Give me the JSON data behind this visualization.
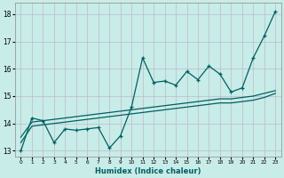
{
  "xlabel": "Humidex (Indice chaleur)",
  "background_color": "#c8ece8",
  "grid_color": "#c0b8cc",
  "line_color": "#006060",
  "x_values": [
    0,
    1,
    2,
    3,
    4,
    5,
    6,
    7,
    8,
    9,
    10,
    11,
    12,
    13,
    14,
    15,
    16,
    17,
    18,
    19,
    20,
    21,
    22,
    23
  ],
  "y_main": [
    13.0,
    14.2,
    14.1,
    13.3,
    13.8,
    13.75,
    13.8,
    13.85,
    13.1,
    13.55,
    14.6,
    16.4,
    15.5,
    15.55,
    15.4,
    15.9,
    15.6,
    16.1,
    15.8,
    15.15,
    15.3,
    16.4,
    17.2,
    18.1
  ],
  "y_smooth1": [
    13.5,
    14.05,
    14.1,
    14.15,
    14.2,
    14.25,
    14.3,
    14.35,
    14.4,
    14.45,
    14.5,
    14.55,
    14.6,
    14.65,
    14.7,
    14.75,
    14.8,
    14.85,
    14.9,
    14.9,
    14.95,
    15.0,
    15.1,
    15.2
  ],
  "y_smooth2": [
    13.3,
    13.9,
    13.95,
    14.0,
    14.05,
    14.1,
    14.15,
    14.2,
    14.25,
    14.3,
    14.35,
    14.4,
    14.45,
    14.5,
    14.55,
    14.6,
    14.65,
    14.7,
    14.75,
    14.75,
    14.8,
    14.85,
    14.95,
    15.1
  ],
  "ylim": [
    12.8,
    18.4
  ],
  "xlim": [
    -0.5,
    23.5
  ],
  "yticks": [
    13,
    14,
    15,
    16,
    17,
    18
  ],
  "xticks": [
    0,
    1,
    2,
    3,
    4,
    5,
    6,
    7,
    8,
    9,
    10,
    11,
    12,
    13,
    14,
    15,
    16,
    17,
    18,
    19,
    20,
    21,
    22,
    23
  ]
}
